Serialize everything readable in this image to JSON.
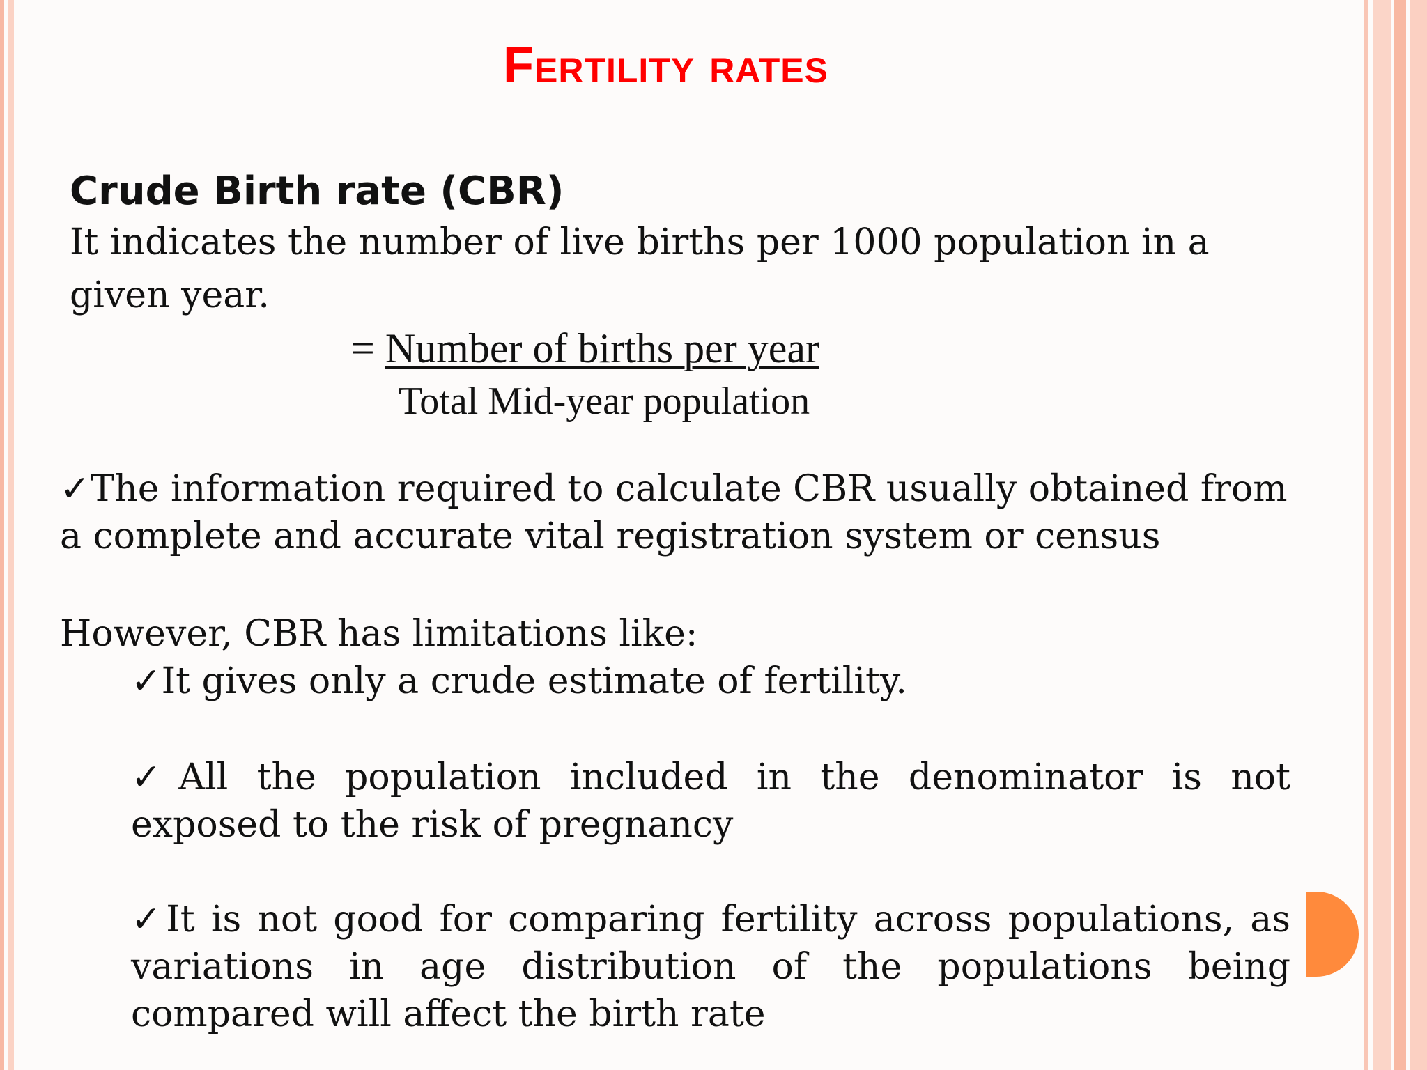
{
  "slide": {
    "title": "Fertility rates",
    "heading": "Crude Birth rate (CBR)",
    "definition": "It indicates the number of live births per 1000 population in a given year.",
    "formula_prefix": "= ",
    "formula_numerator": "Number of births per year",
    "formula_denominator": "Total Mid-year population",
    "point_1": "The information required to calculate CBR usually obtained from a complete and accurate vital registration system or census",
    "limitations_intro": "However, CBR has limitations like:",
    "limitation_1": "It gives only a crude estimate of fertility.",
    "limitation_2": "All the population included in the denominator is not exposed to the risk of pregnancy",
    "limitation_3": "It is not good for comparing fertility across populations, as variations in age distribution of the populations being compared will affect the birth rate",
    "checkmark": "✓"
  },
  "colors": {
    "title": "#ff0000",
    "accent_circle": "#ff8a3c",
    "border_stripes": "#f7b79f"
  }
}
